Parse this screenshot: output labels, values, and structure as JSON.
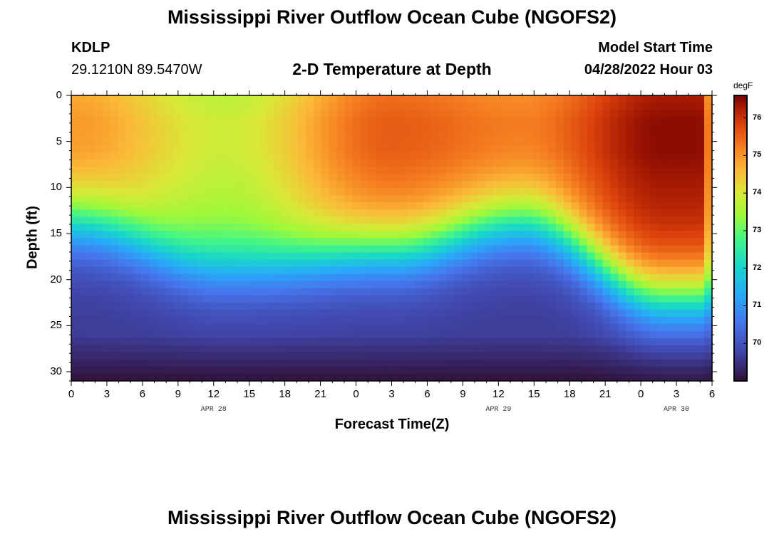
{
  "header": {
    "main_title": "Mississippi River Outflow Ocean Cube (NGOFS2)",
    "station_id": "KDLP",
    "station_coords": "29.1210N  89.5470W",
    "subtitle": "2-D Temperature at Depth",
    "model_start_label": "Model Start Time",
    "model_start_value": "04/28/2022 Hour 03"
  },
  "footer": {
    "repeat_title": "Mississippi River Outflow Ocean Cube (NGOFS2)"
  },
  "chart_data": {
    "type": "heatmap",
    "title": "2-D Temperature at Depth",
    "xlabel": "Forecast Time(Z)",
    "ylabel": "Depth (ft)",
    "x_hours_range": [
      0,
      54
    ],
    "ylim": [
      31,
      0
    ],
    "x_tick_labels": [
      "0",
      "3",
      "6",
      "9",
      "12",
      "15",
      "18",
      "21",
      "0",
      "3",
      "6",
      "9",
      "12",
      "15",
      "18",
      "21",
      "0",
      "3",
      "6"
    ],
    "x_tick_hours": [
      0,
      3,
      6,
      9,
      12,
      15,
      18,
      21,
      24,
      27,
      30,
      33,
      36,
      39,
      42,
      45,
      48,
      51,
      54
    ],
    "y_ticks": [
      0,
      5,
      10,
      15,
      20,
      25,
      30
    ],
    "date_labels": [
      {
        "text": "APR 28",
        "hour": 12
      },
      {
        "text": "APR 29",
        "hour": 36
      },
      {
        "text": "APR 30",
        "hour": 51
      }
    ],
    "colorbar": {
      "unit": "degF",
      "min": 69.0,
      "max": 76.6,
      "ticks": [
        70,
        71,
        72,
        73,
        74,
        75,
        76
      ]
    },
    "data_description_points": [
      {
        "hour": 0,
        "surface_temp": 75.0,
        "thermocline_depth_ft": 14
      },
      {
        "hour": 13,
        "surface_temp": 73.9,
        "thermocline_depth_ft": 19
      },
      {
        "hour": 27,
        "surface_temp": 75.6,
        "thermocline_depth_ft": 17
      },
      {
        "hour": 38,
        "surface_temp": 75.3,
        "thermocline_depth_ft": 14
      },
      {
        "hour": 50,
        "surface_temp": 76.5,
        "thermocline_depth_ft": 22
      }
    ]
  }
}
